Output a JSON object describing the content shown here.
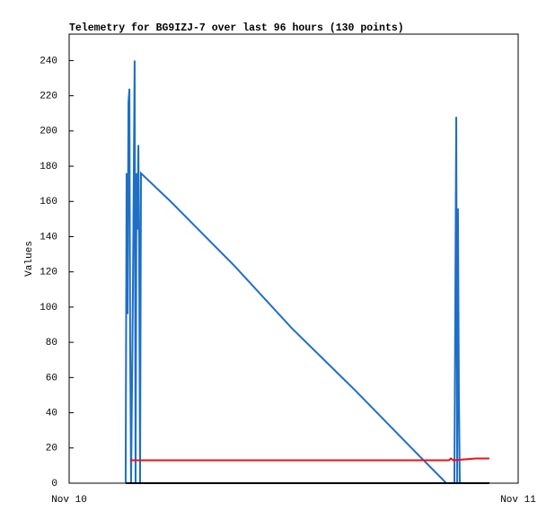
{
  "chart_data": {
    "type": "line",
    "title": "Telemetry for BG9IZJ-7 over last 96 hours (130 points)",
    "y_label": "Values",
    "xlim": [
      0,
      24
    ],
    "xticks": [
      {
        "value": 0,
        "label": "Nov 10"
      },
      {
        "value": 24,
        "label": "Nov 11"
      }
    ],
    "ylim": [
      0,
      255
    ],
    "yticks": [
      0,
      20,
      40,
      60,
      80,
      100,
      120,
      140,
      160,
      180,
      200,
      220,
      240
    ],
    "grid": false,
    "series": [
      {
        "color": "#1f6fc6",
        "x": [
          3.02,
          3.07,
          3.12,
          3.17,
          3.22,
          3.26,
          3.31,
          3.41,
          3.5,
          3.55,
          3.6,
          3.65,
          3.7,
          3.74,
          3.79,
          3.84,
          5.42,
          8.78,
          11.9,
          15.26,
          18.48,
          20.16,
          20.59,
          20.69,
          20.74,
          20.78,
          20.83,
          20.88
        ],
        "values": [
          0,
          176,
          96,
          216,
          224,
          80,
          0,
          112,
          240,
          0,
          176,
          144,
          192,
          136,
          0,
          176,
          160,
          124,
          88,
          53,
          18,
          0,
          0,
          208,
          0,
          156,
          52,
          0
        ]
      },
      {
        "color": "#ee1111",
        "x": [
          3.26,
          20.3,
          20.4,
          20.54,
          21.74,
          22.46
        ],
        "values": [
          13,
          13,
          14,
          13,
          14,
          14
        ]
      },
      {
        "color": "#000000",
        "x": [
          3.02,
          22.46
        ],
        "values": [
          0,
          0
        ]
      }
    ]
  }
}
